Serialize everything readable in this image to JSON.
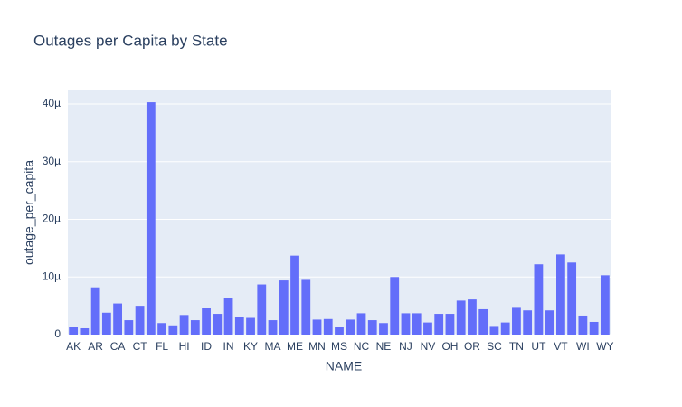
{
  "chart_data": {
    "type": "bar",
    "title": "Outages per Capita by State",
    "x_label": "NAME",
    "y_label": "outage_per_capita",
    "categories": [
      "AK",
      null,
      "AR",
      null,
      "CA",
      null,
      "CT",
      null,
      "FL",
      null,
      "HI",
      null,
      "ID",
      null,
      "IN",
      null,
      "KY",
      null,
      "MA",
      null,
      "ME",
      null,
      "MN",
      null,
      "MS",
      null,
      "NC",
      null,
      "NE",
      null,
      "NJ",
      null,
      "NV",
      null,
      "OH",
      null,
      "OR",
      null,
      "SC",
      null,
      "TN",
      null,
      "UT",
      null,
      "VT",
      null,
      "WI",
      null,
      "WY"
    ],
    "values": [
      1.4e-06,
      1.1e-06,
      8.2e-06,
      3.8e-06,
      5.4e-06,
      2.5e-06,
      5e-06,
      4.03e-05,
      2e-06,
      1.6e-06,
      3.4e-06,
      2.5e-06,
      4.7e-06,
      3.6e-06,
      6.3e-06,
      3.1e-06,
      2.9e-06,
      8.7e-06,
      2.5e-06,
      9.4e-06,
      1.37e-05,
      9.5e-06,
      2.6e-06,
      2.7e-06,
      1.4e-06,
      2.6e-06,
      3.7e-06,
      2.5e-06,
      2e-06,
      1e-05,
      3.7e-06,
      3.7e-06,
      2.1e-06,
      3.6e-06,
      3.6e-06,
      5.9e-06,
      6.1e-06,
      4.4e-06,
      1.5e-06,
      2.1e-06,
      4.8e-06,
      4.2e-06,
      1.22e-05,
      4.2e-06,
      1.39e-05,
      1.25e-05,
      3.3e-06,
      2.2e-06,
      1.03e-05
    ],
    "color": "#636efa",
    "ylim": [
      0,
      4.235e-05
    ],
    "yticks": [
      0,
      {
        "value": 1e-05,
        "label": "10µ"
      },
      {
        "value": 2e-05,
        "label": "20µ"
      },
      {
        "value": 3e-05,
        "label": "30µ"
      },
      {
        "value": 4e-05,
        "label": "40µ"
      }
    ],
    "grid": true
  }
}
